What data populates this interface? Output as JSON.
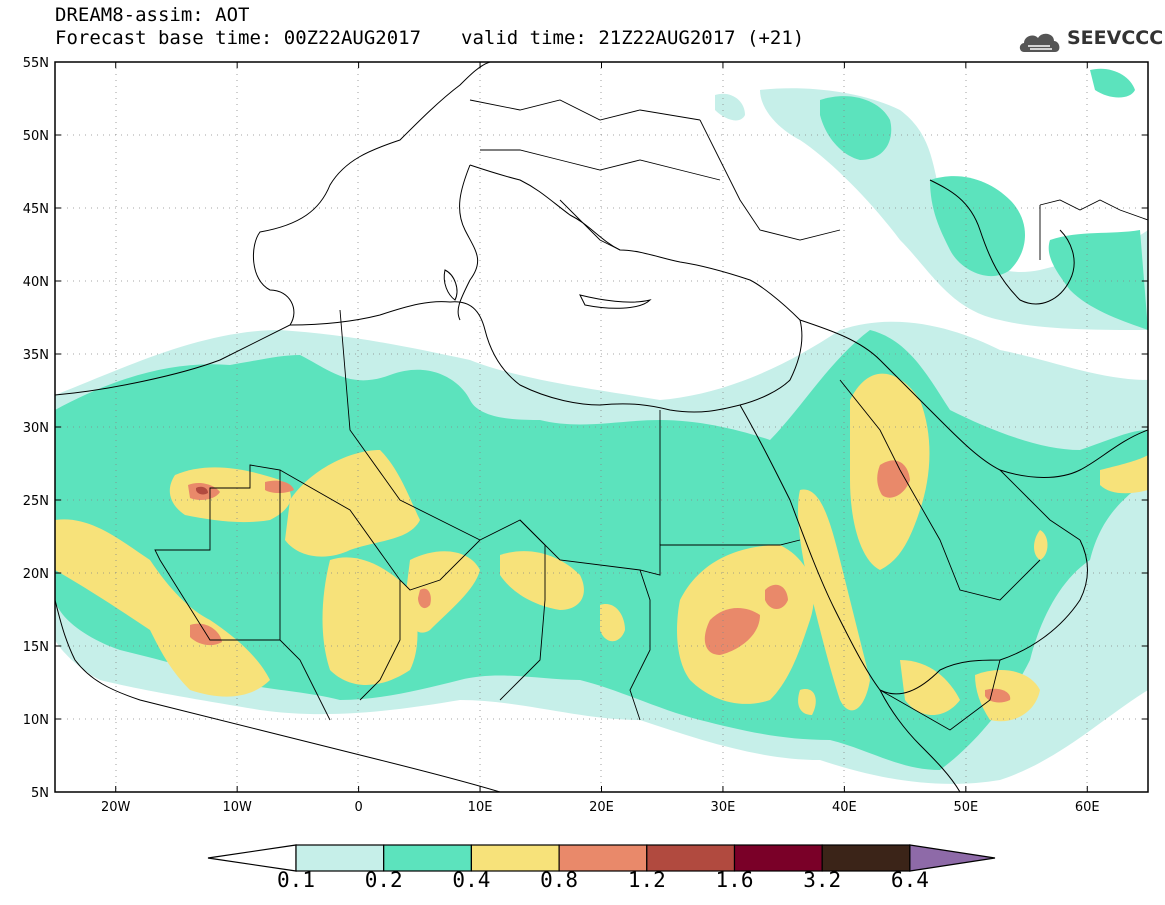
{
  "header": {
    "title": "DREAM8-assim: AOT",
    "base_time": "Forecast base time: 00Z22AUG2017",
    "valid_time": "valid time: 21Z22AUG2017 (+21)"
  },
  "logo": {
    "text": "SEEVCCC",
    "icon": "cloud-icon"
  },
  "map": {
    "lat_labels": [
      "55N",
      "50N",
      "45N",
      "40N",
      "35N",
      "30N",
      "25N",
      "20N",
      "15N",
      "10N",
      "5N"
    ],
    "lon_labels": [
      "20W",
      "10W",
      "0",
      "10E",
      "20E",
      "30E",
      "40E",
      "50E",
      "60E"
    ],
    "lat_range": [
      5,
      55
    ],
    "lon_range": [
      -25,
      65
    ],
    "gridlines": "dotted"
  },
  "colorbar": {
    "labels": [
      "0.1",
      "0.2",
      "0.4",
      "0.8",
      "1.2",
      "1.6",
      "3.2",
      "6.4"
    ],
    "colors": [
      "#ffffff",
      "#c6efe9",
      "#5ce3bd",
      "#f7e27a",
      "#e9896a",
      "#b14a3f",
      "#7a0028",
      "#3b2418",
      "#8e6aa8"
    ]
  },
  "colors": {
    "aot_01_02": "#c6efe9",
    "aot_02_04": "#5ce3bd",
    "aot_04_08": "#f7e27a",
    "aot_08_12": "#e9896a",
    "aot_12_16": "#b14a3f"
  }
}
